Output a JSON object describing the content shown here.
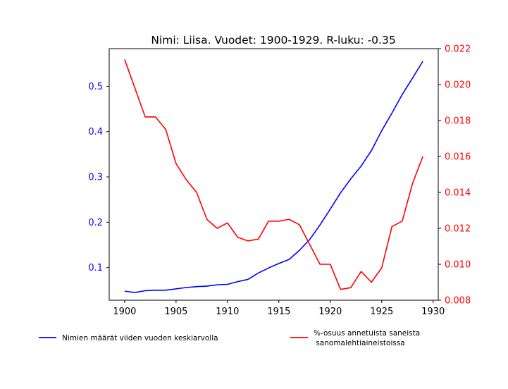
{
  "chart_data": {
    "type": "line",
    "title": "Nimi: Liisa. Vuodet: 1900-1929. R-luku: -0.35",
    "xlabel": "",
    "ylabel": "",
    "xlim": [
      1898.5,
      1930.5
    ],
    "x_ticks": [
      "1900",
      "1905",
      "1910",
      "1915",
      "1920",
      "1925",
      "1930"
    ],
    "y_left": {
      "lim": [
        0.028,
        0.583
      ],
      "ticks": [
        "0.1",
        "0.2",
        "0.3",
        "0.4",
        "0.5"
      ],
      "color": "#0000ff"
    },
    "y_right": {
      "lim": [
        0.008,
        0.022
      ],
      "ticks": [
        "0.008",
        "0.010",
        "0.012",
        "0.014",
        "0.016",
        "0.018",
        "0.020",
        "0.022"
      ],
      "color": "#ff0000"
    },
    "grid": false,
    "legend_position": "bottom",
    "x": [
      1900,
      1901,
      1902,
      1903,
      1904,
      1905,
      1906,
      1907,
      1908,
      1909,
      1910,
      1911,
      1912,
      1913,
      1914,
      1915,
      1916,
      1917,
      1918,
      1919,
      1920,
      1921,
      1922,
      1923,
      1924,
      1925,
      1926,
      1927,
      1928,
      1929
    ],
    "series": [
      {
        "name": "Nimien määrät viiden vuoden keskiarvolla",
        "axis": "left",
        "color": "#0000ff",
        "values": [
          0.048,
          0.045,
          0.049,
          0.05,
          0.05,
          0.053,
          0.056,
          0.058,
          0.059,
          0.062,
          0.063,
          0.069,
          0.074,
          0.088,
          0.099,
          0.109,
          0.118,
          0.138,
          0.162,
          0.194,
          0.229,
          0.265,
          0.296,
          0.324,
          0.358,
          0.402,
          0.441,
          0.482,
          0.518,
          0.555
        ]
      },
      {
        "name": "%-osuus annetuista saneista\n sanomalehtiaineistoissa",
        "axis": "right",
        "color": "#ff0000",
        "values": [
          0.0214,
          0.0198,
          0.0182,
          0.0182,
          0.0175,
          0.0156,
          0.0147,
          0.014,
          0.0125,
          0.012,
          0.0123,
          0.0115,
          0.0113,
          0.0114,
          0.0124,
          0.0124,
          0.0125,
          0.0122,
          0.0111,
          0.01,
          0.01,
          0.0086,
          0.0087,
          0.0096,
          0.009,
          0.0098,
          0.0121,
          0.0124,
          0.0145,
          0.016
        ]
      }
    ]
  }
}
